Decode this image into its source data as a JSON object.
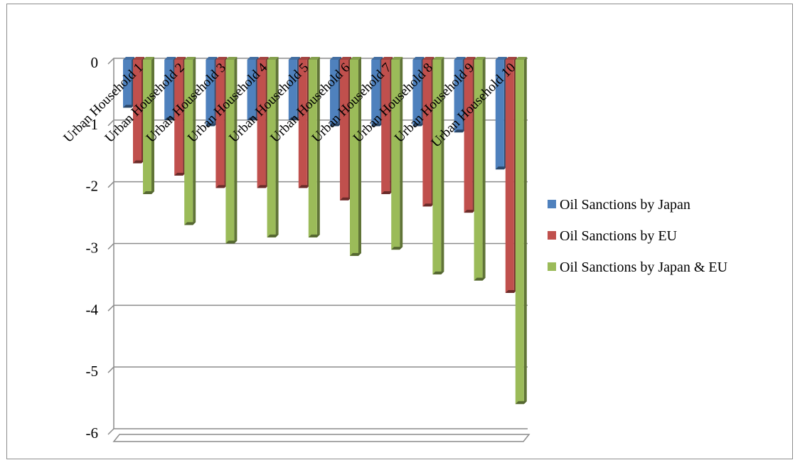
{
  "chart_data": {
    "type": "bar",
    "title": "",
    "xlabel": "",
    "ylabel": "",
    "ylim": [
      -6,
      0
    ],
    "yticks": [
      0,
      -1,
      -2,
      -3,
      -4,
      -5,
      -6
    ],
    "grid": true,
    "legend_position": "right",
    "categories": [
      "Urban Household 1",
      "Urban Household 2",
      "Urban Household 3",
      "Urban Household 4",
      "Urban Household 5",
      "Urban Household 6",
      "Urban Household 7",
      "Urban Household 8",
      "Urban Household 9",
      "Urban Household 10"
    ],
    "series": [
      {
        "name": "Oil Sanctions by Japan",
        "color": "#4f81bd",
        "values": [
          -0.8,
          -1.0,
          -1.1,
          -1.0,
          -1.0,
          -1.1,
          -1.1,
          -1.1,
          -1.2,
          -1.8
        ]
      },
      {
        "name": "Oil Sanctions by EU",
        "color": "#c0504d",
        "values": [
          -1.7,
          -1.9,
          -2.1,
          -2.1,
          -2.1,
          -2.3,
          -2.2,
          -2.4,
          -2.5,
          -3.8
        ]
      },
      {
        "name": "Oil Sanctions by Japan & EU",
        "color": "#9bbb59",
        "values": [
          -2.2,
          -2.7,
          -3.0,
          -2.9,
          -2.9,
          -3.2,
          -3.1,
          -3.5,
          -3.6,
          -5.6
        ]
      }
    ]
  }
}
